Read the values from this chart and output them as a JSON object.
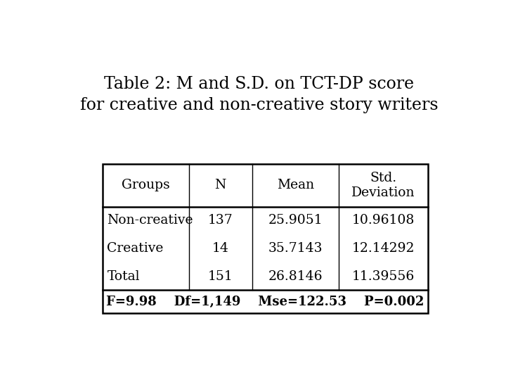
{
  "title_line1": "Table 2: M and S.D. on TCT-DP score",
  "title_line2": "for creative and non-creative story writers",
  "title_fontsize": 17,
  "headers": [
    "Groups",
    "N",
    "Mean",
    "Std.\nDeviation"
  ],
  "rows": [
    [
      "Non-creative",
      "137",
      "25.9051",
      "10.96108"
    ],
    [
      "Creative",
      "14",
      "35.7143",
      "12.14292"
    ],
    [
      "Total",
      "151",
      "26.8146",
      "11.39556"
    ]
  ],
  "footer": "F=9.98    Df=1,149    Mse=122.53    P=0.002",
  "background_color": "#ffffff",
  "text_color": "#000000",
  "table_font_size": 13.5,
  "footer_font_size": 13
}
